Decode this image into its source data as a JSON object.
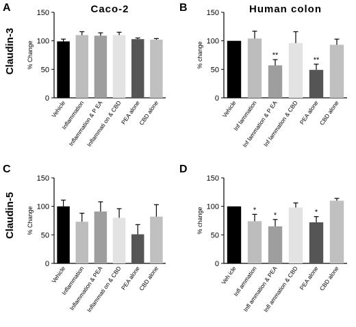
{
  "figure": {
    "row_labels": [
      "Claudin-3",
      "Claudin-5"
    ]
  },
  "chart_data": [
    {
      "panel": "A",
      "title": "Caco-2",
      "type": "bar",
      "ylabel": "% Change",
      "ylim": [
        0,
        150
      ],
      "yticks": [
        0,
        50,
        100,
        150
      ],
      "categories": [
        "Vehicle",
        "Inflammation",
        "Inflammation & P EA",
        "Inflammati on & CBD",
        "PEA alone",
        "CBD alone"
      ],
      "values": [
        99,
        110,
        109,
        110,
        103,
        102
      ],
      "errors": [
        4,
        6,
        5,
        5,
        2,
        2
      ],
      "colors": [
        "#000000",
        "#bdbdbd",
        "#9e9e9e",
        "#e3e3e3",
        "#555555",
        "#c0c0c0"
      ],
      "annotations": [
        "",
        "",
        "",
        "",
        "",
        ""
      ]
    },
    {
      "panel": "B",
      "title": "Human colon",
      "type": "bar",
      "ylabel": "% change",
      "ylim": [
        0,
        150
      ],
      "yticks": [
        0,
        50,
        100,
        150
      ],
      "categories": [
        "Vehicle",
        "Inf lammation",
        "Inf lammation & P EA",
        "Inf lammation & CBD",
        "PEA alone",
        "CBD alone"
      ],
      "values": [
        100,
        104,
        57,
        96,
        49,
        93
      ],
      "errors": [
        0,
        13,
        10,
        20,
        10,
        10
      ],
      "colors": [
        "#000000",
        "#bdbdbd",
        "#9e9e9e",
        "#e3e3e3",
        "#555555",
        "#c0c0c0"
      ],
      "annotations": [
        "",
        "",
        "**",
        "",
        "**",
        ""
      ]
    },
    {
      "panel": "C",
      "title": "",
      "type": "bar",
      "ylabel": "% Change",
      "ylim": [
        0,
        150
      ],
      "yticks": [
        0,
        50,
        100,
        150
      ],
      "categories": [
        "Vehicle",
        "Inflammation",
        "Inflammation & PEA",
        "Inflammati on & CBD",
        "PEA alone",
        "CBD alone"
      ],
      "values": [
        100,
        73,
        91,
        80,
        51,
        82
      ],
      "errors": [
        11,
        15,
        17,
        16,
        17,
        21
      ],
      "colors": [
        "#000000",
        "#bdbdbd",
        "#9e9e9e",
        "#e3e3e3",
        "#555555",
        "#c0c0c0"
      ],
      "annotations": [
        "",
        "",
        "",
        "",
        "",
        ""
      ]
    },
    {
      "panel": "D",
      "title": "",
      "type": "bar",
      "ylabel": "% change",
      "ylim": [
        0,
        150
      ],
      "yticks": [
        0,
        50,
        100,
        150
      ],
      "categories": [
        "Veh icle",
        "Infl ammation",
        "Infl ammation & PEA",
        "Infl ammation & CBD",
        "PEA alone",
        "CBD alone"
      ],
      "values": [
        100,
        74,
        65,
        98,
        72,
        110
      ],
      "errors": [
        0,
        12,
        12,
        8,
        10,
        4
      ],
      "colors": [
        "#000000",
        "#bdbdbd",
        "#9e9e9e",
        "#e3e3e3",
        "#555555",
        "#c0c0c0"
      ],
      "annotations": [
        "",
        "*",
        "*",
        "",
        "*",
        ""
      ]
    }
  ]
}
